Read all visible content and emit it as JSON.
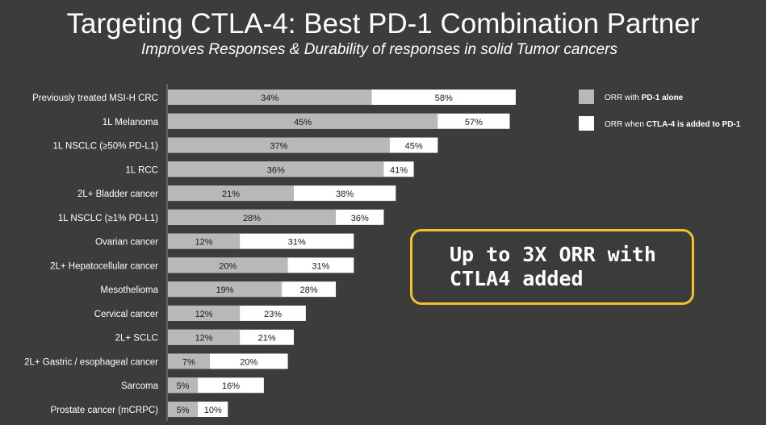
{
  "title": "Targeting CTLA-4: Best PD-1 Combination Partner",
  "subtitle": "Improves Responses & Durability of responses in solid Tumor cancers",
  "callout": "Up to 3X ORR with\nCTLA4 added",
  "colors": {
    "pd1_alone": "#b8b8b8",
    "ctla4_added": "#ffffff",
    "background": "#3c3c3c",
    "axis": "#8a8a8a",
    "callout_border": "#f2c12e"
  },
  "chart_data": {
    "type": "bar",
    "orientation": "horizontal",
    "stacked": "overlay",
    "categories": [
      "Previously treated MSI-H CRC",
      "1L Melanoma",
      "1L NSCLC (≥50% PD-L1)",
      "1L RCC",
      "2L+ Bladder cancer",
      "1L NSCLC (≥1% PD-L1)",
      "Ovarian cancer",
      "2L+ Hepatocellular cancer",
      "Mesothelioma",
      "Cervical cancer",
      "2L+ SCLC",
      "2L+ Gastric / esophageal cancer",
      "Sarcoma",
      "Prostate cancer (mCRPC)"
    ],
    "series": [
      {
        "name": "ORR with PD-1 alone",
        "legend_plain": "ORR with ",
        "legend_bold": "PD-1 alone",
        "values": [
          34,
          45,
          37,
          36,
          21,
          28,
          12,
          20,
          19,
          12,
          12,
          7,
          5,
          5
        ],
        "color": "#b8b8b8"
      },
      {
        "name": "ORR when CTLA-4 is added to PD-1",
        "legend_plain": "ORR when ",
        "legend_bold": "CTLA-4 is added to PD-1",
        "values": [
          58,
          57,
          45,
          41,
          38,
          36,
          31,
          31,
          28,
          23,
          21,
          20,
          16,
          10
        ],
        "color": "#ffffff"
      }
    ],
    "value_suffix": "%",
    "xlim": [
      0,
      60
    ],
    "grid": false,
    "legend_position": "top-right"
  }
}
